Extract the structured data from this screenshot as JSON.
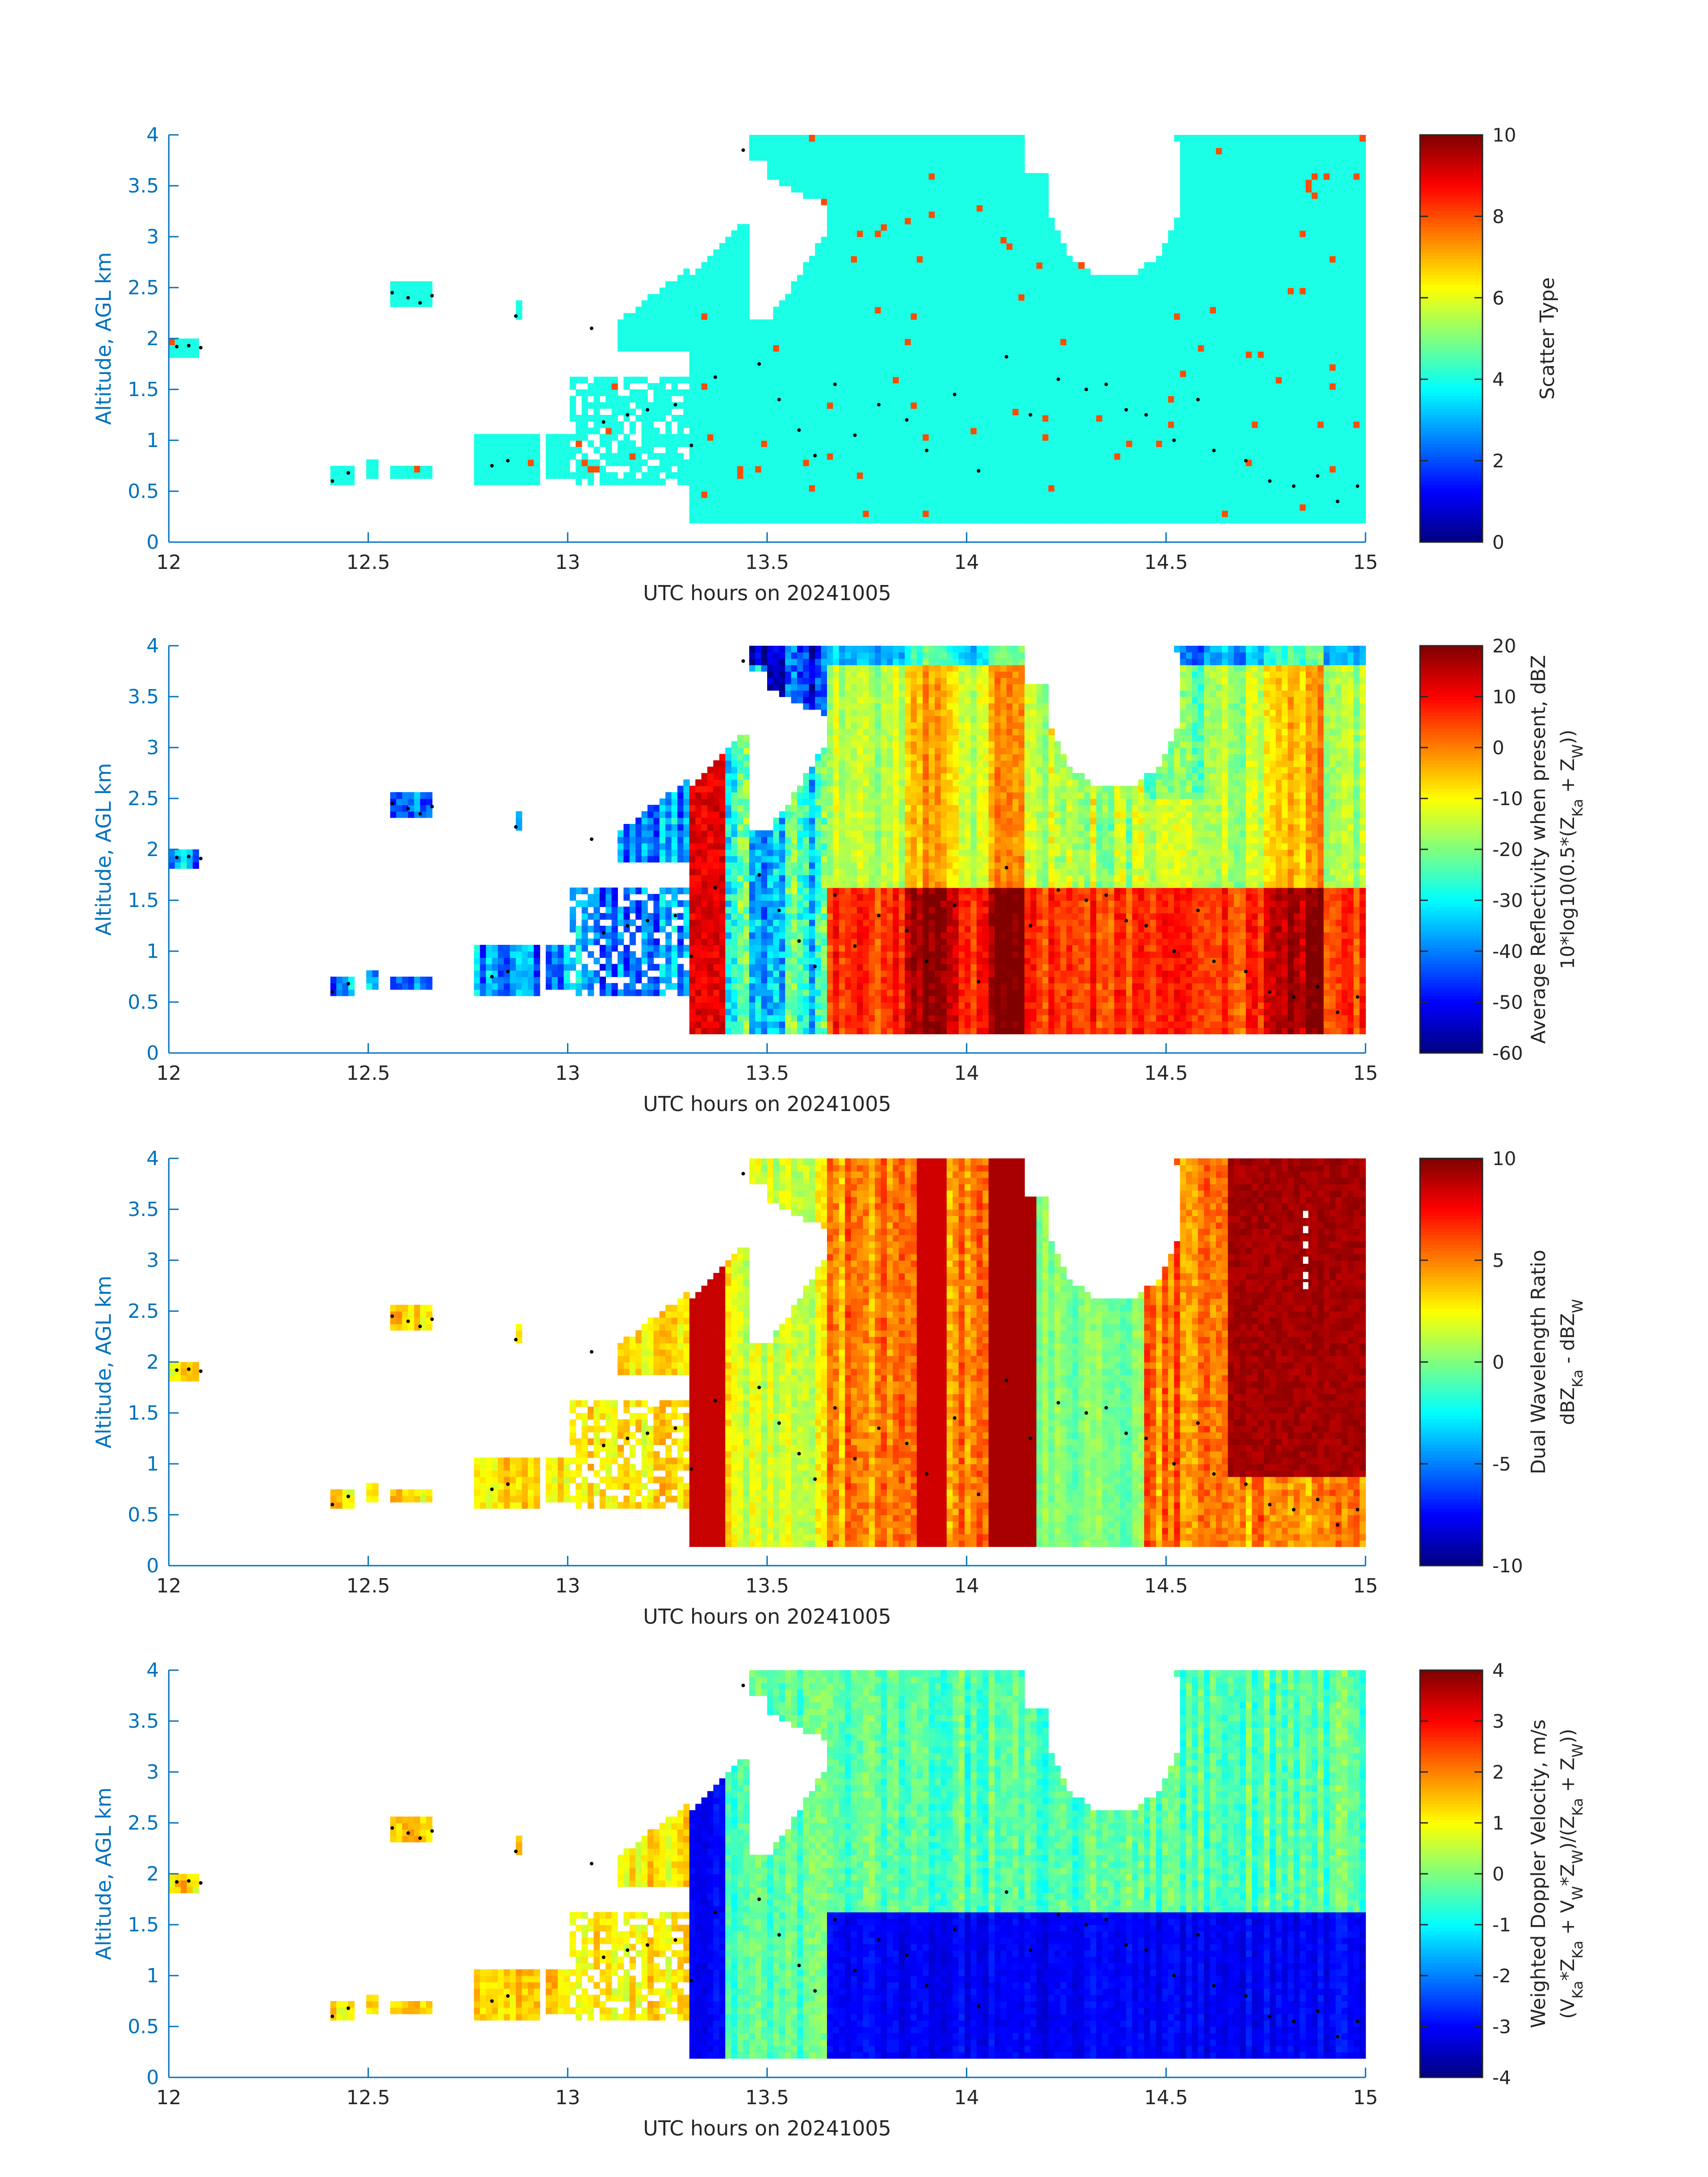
{
  "figure": {
    "panels": [
      {
        "id": "scatter-type",
        "cb_min": 0,
        "cb_max": 10,
        "cb_ticks": [
          0,
          2,
          4,
          6,
          8,
          10
        ],
        "cb_label1": "Scatter Type",
        "cb_label2": ""
      },
      {
        "id": "reflectivity",
        "cb_min": -60,
        "cb_max": 20,
        "cb_ticks": [
          -60,
          -50,
          -40,
          -30,
          -20,
          -10,
          0,
          10,
          20
        ],
        "cb_label1": "Average Reflectivity when present, dBZ",
        "cb_label2": "10*log10(0.5*(Z_Ka + Z_W))"
      },
      {
        "id": "dwr",
        "cb_min": -10,
        "cb_max": 10,
        "cb_ticks": [
          -10,
          -5,
          0,
          5,
          10
        ],
        "cb_label1": "Dual Wavelength Ratio",
        "cb_label2": "dBZ_Ka - dBZ_W"
      },
      {
        "id": "doppler",
        "cb_min": -4,
        "cb_max": 4,
        "cb_ticks": [
          -4,
          -3,
          -2,
          -1,
          0,
          1,
          2,
          3,
          4
        ],
        "cb_label1": "Weighted Doppler Velocity, m/s",
        "cb_label2": "(V_Ka*Z_Ka + V_W*Z_W)/(Z_Ka + Z_W))"
      }
    ],
    "xlabel": "UTC hours on 20241005",
    "ylabel": "Altitude, AGL km",
    "xlim": [
      12,
      15
    ],
    "ylim": [
      0,
      4
    ],
    "xticks": [
      12,
      12.5,
      13,
      13.5,
      14,
      14.5,
      15
    ],
    "yticks": [
      0,
      0.5,
      1,
      1.5,
      2,
      2.5,
      3,
      3.5,
      4
    ],
    "colormap": "jet",
    "colors": {
      "axis": "#0072BD",
      "text": "#262626"
    }
  },
  "chart_data": {
    "type": "heatmap",
    "shared": {
      "x_unit": "UTC hours",
      "y_unit": "km AGL",
      "xlim": [
        12,
        15
      ],
      "ylim": [
        0,
        4
      ],
      "overlay_points_description": "black dots (cloud base / lidar markers)",
      "overlay_points": [
        [
          12.02,
          1.92
        ],
        [
          12.05,
          1.93
        ],
        [
          12.08,
          1.91
        ],
        [
          12.41,
          0.6
        ],
        [
          12.45,
          0.68
        ],
        [
          12.56,
          2.45
        ],
        [
          12.6,
          2.4
        ],
        [
          12.63,
          2.35
        ],
        [
          12.66,
          2.42
        ],
        [
          12.87,
          2.22
        ],
        [
          12.81,
          0.75
        ],
        [
          12.85,
          0.8
        ],
        [
          13.06,
          2.1
        ],
        [
          13.09,
          1.18
        ],
        [
          13.15,
          1.25
        ],
        [
          13.2,
          1.3
        ],
        [
          13.27,
          1.35
        ],
        [
          13.31,
          0.95
        ],
        [
          13.37,
          1.62
        ],
        [
          13.44,
          3.85
        ],
        [
          13.48,
          1.75
        ],
        [
          13.53,
          1.4
        ],
        [
          13.58,
          1.1
        ],
        [
          13.62,
          0.85
        ],
        [
          13.67,
          1.55
        ],
        [
          13.72,
          1.05
        ],
        [
          13.78,
          1.35
        ],
        [
          13.85,
          1.2
        ],
        [
          13.9,
          0.9
        ],
        [
          13.97,
          1.45
        ],
        [
          14.03,
          0.7
        ],
        [
          14.1,
          1.82
        ],
        [
          14.16,
          1.25
        ],
        [
          14.23,
          1.6
        ],
        [
          14.3,
          1.5
        ],
        [
          14.35,
          1.55
        ],
        [
          14.4,
          1.3
        ],
        [
          14.45,
          1.25
        ],
        [
          14.52,
          1.0
        ],
        [
          14.58,
          1.4
        ],
        [
          14.62,
          0.9
        ],
        [
          14.7,
          0.8
        ],
        [
          14.76,
          0.6
        ],
        [
          14.82,
          0.55
        ],
        [
          14.88,
          0.65
        ],
        [
          14.93,
          0.4
        ],
        [
          14.98,
          0.55
        ]
      ],
      "note": "Data estimated visually from time-height curtains; fields summarised as regions"
    },
    "panels": [
      {
        "name": "Scatter Type",
        "type": "heatmap",
        "clim": [
          0,
          10
        ],
        "dominant_value": 4,
        "secondary_value": 8
      },
      {
        "name": "Average Reflectivity when present, dBZ",
        "type": "heatmap",
        "clim": [
          -60,
          20
        ],
        "typical_below_1.5km_after_13.7": 10,
        "typical_upper": -15
      },
      {
        "name": "Dual Wavelength Ratio",
        "type": "heatmap",
        "clim": [
          -10,
          10
        ],
        "typical": 3,
        "max_column_14.05": 10,
        "max_region_14.65_15": 10
      },
      {
        "name": "Weighted Doppler Velocity, m/s",
        "type": "heatmap",
        "clim": [
          -4,
          4
        ],
        "typical_upper": -0.5,
        "typical_below_1.6km": -3.5
      }
    ]
  }
}
